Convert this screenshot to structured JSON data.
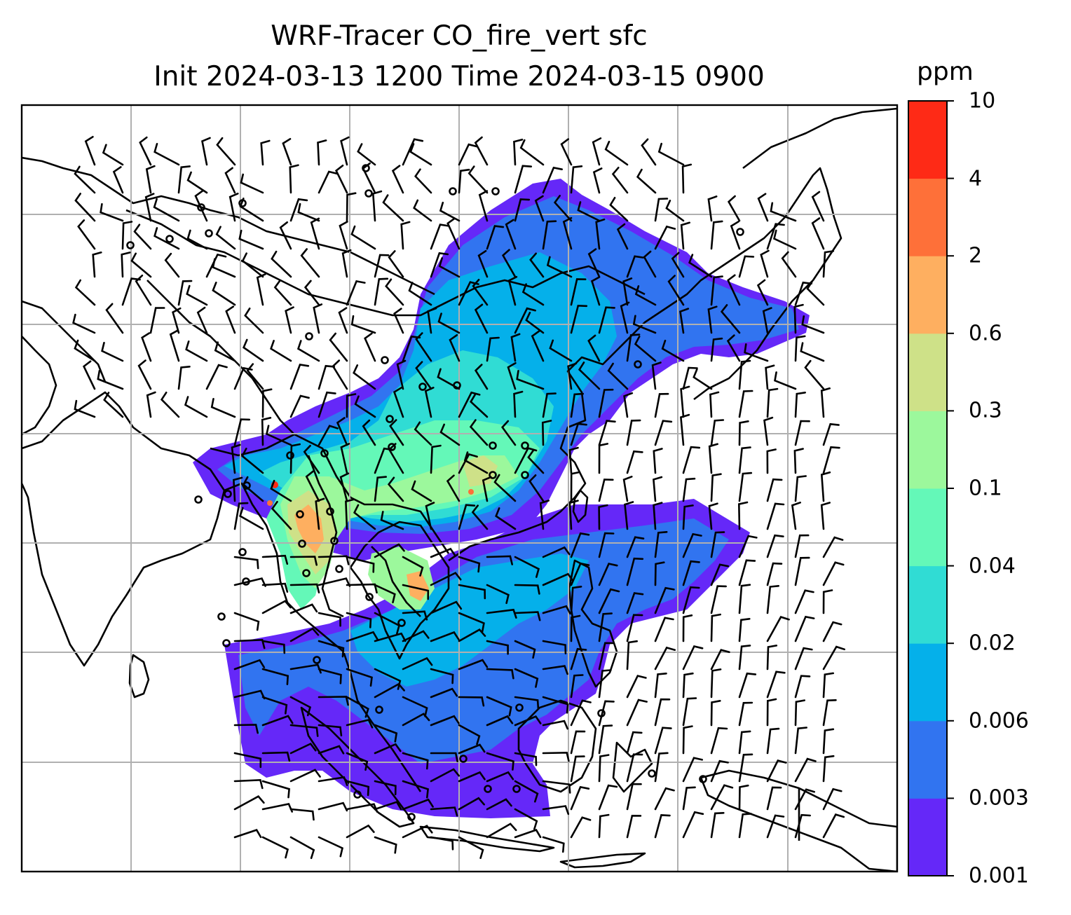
{
  "title": {
    "line1": "WRF-Tracer CO_fire_vert sfc",
    "line2": "Init 2024-03-13 1200 Time 2024-03-15 0900"
  },
  "colorbar": {
    "unit": "ppm",
    "levels": [
      "0.001",
      "0.003",
      "0.006",
      "0.02",
      "0.04",
      "0.1",
      "0.3",
      "0.6",
      "2",
      "4",
      "10"
    ],
    "colors": [
      "#6528f8",
      "#3174f0",
      "#05b0ea",
      "#30dcd4",
      "#64f8b8",
      "#9cf89c",
      "#cee188",
      "#feaf60",
      "#fe7039",
      "#fe2a16"
    ]
  },
  "map": {
    "land_color": "#ffffff",
    "coastline_color": "#000000",
    "gridline_color": "#b0b0b0",
    "barb_color": "#000000"
  }
}
